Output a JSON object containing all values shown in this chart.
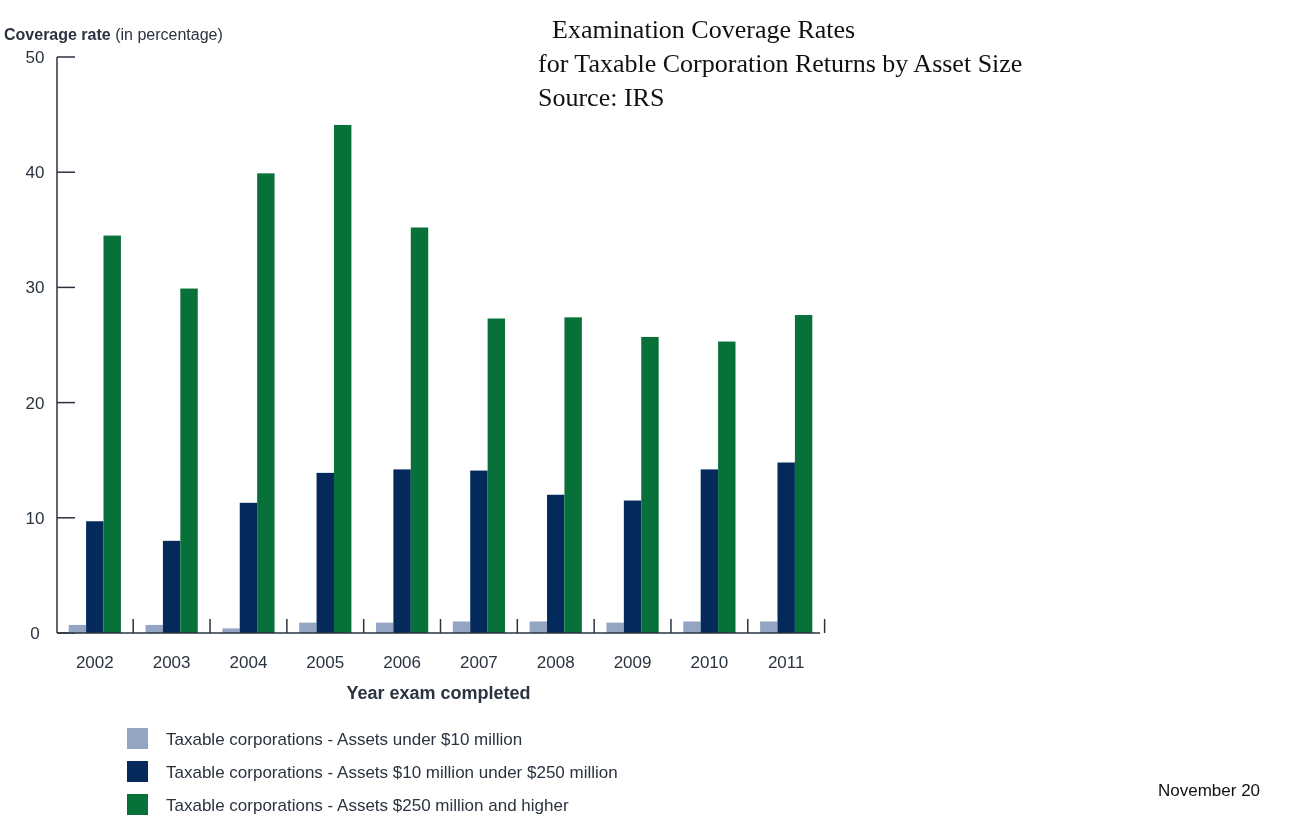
{
  "chart_data": {
    "type": "bar",
    "title": "Examination Coverage Rates",
    "subtitle": "for Taxable Corporation Returns by Asset Size",
    "ylabel": "Coverage rate (in percentage)",
    "xlabel": "Year exam completed",
    "annotations": [
      "Source: IRS",
      "November 20"
    ],
    "categories": [
      "2002",
      "2003",
      "2004",
      "2005",
      "2006",
      "2007",
      "2008",
      "2009",
      "2010",
      "2011"
    ],
    "series": [
      {
        "name": "Taxable corporations - Assets under $10 million",
        "color": "#94a5c4",
        "values": [
          0.7,
          0.7,
          0.4,
          0.9,
          0.9,
          1.0,
          1.0,
          0.9,
          1.0,
          1.0
        ]
      },
      {
        "name": "Taxable corporations - Assets $10 million under $250 million",
        "color": "#032a5a",
        "values": [
          9.7,
          8.0,
          11.3,
          13.9,
          14.2,
          14.1,
          12.0,
          11.5,
          14.2,
          14.8
        ]
      },
      {
        "name": "Taxable corporations - Assets $250 million and higher",
        "color": "#08713a",
        "values": [
          34.5,
          29.9,
          39.9,
          44.1,
          35.2,
          27.3,
          27.4,
          25.7,
          25.3,
          27.6
        ]
      }
    ],
    "ylim": [
      0,
      50
    ],
    "yticks": [
      0,
      10,
      20,
      30,
      40,
      50
    ],
    "grid": false,
    "legend": "bottom"
  }
}
